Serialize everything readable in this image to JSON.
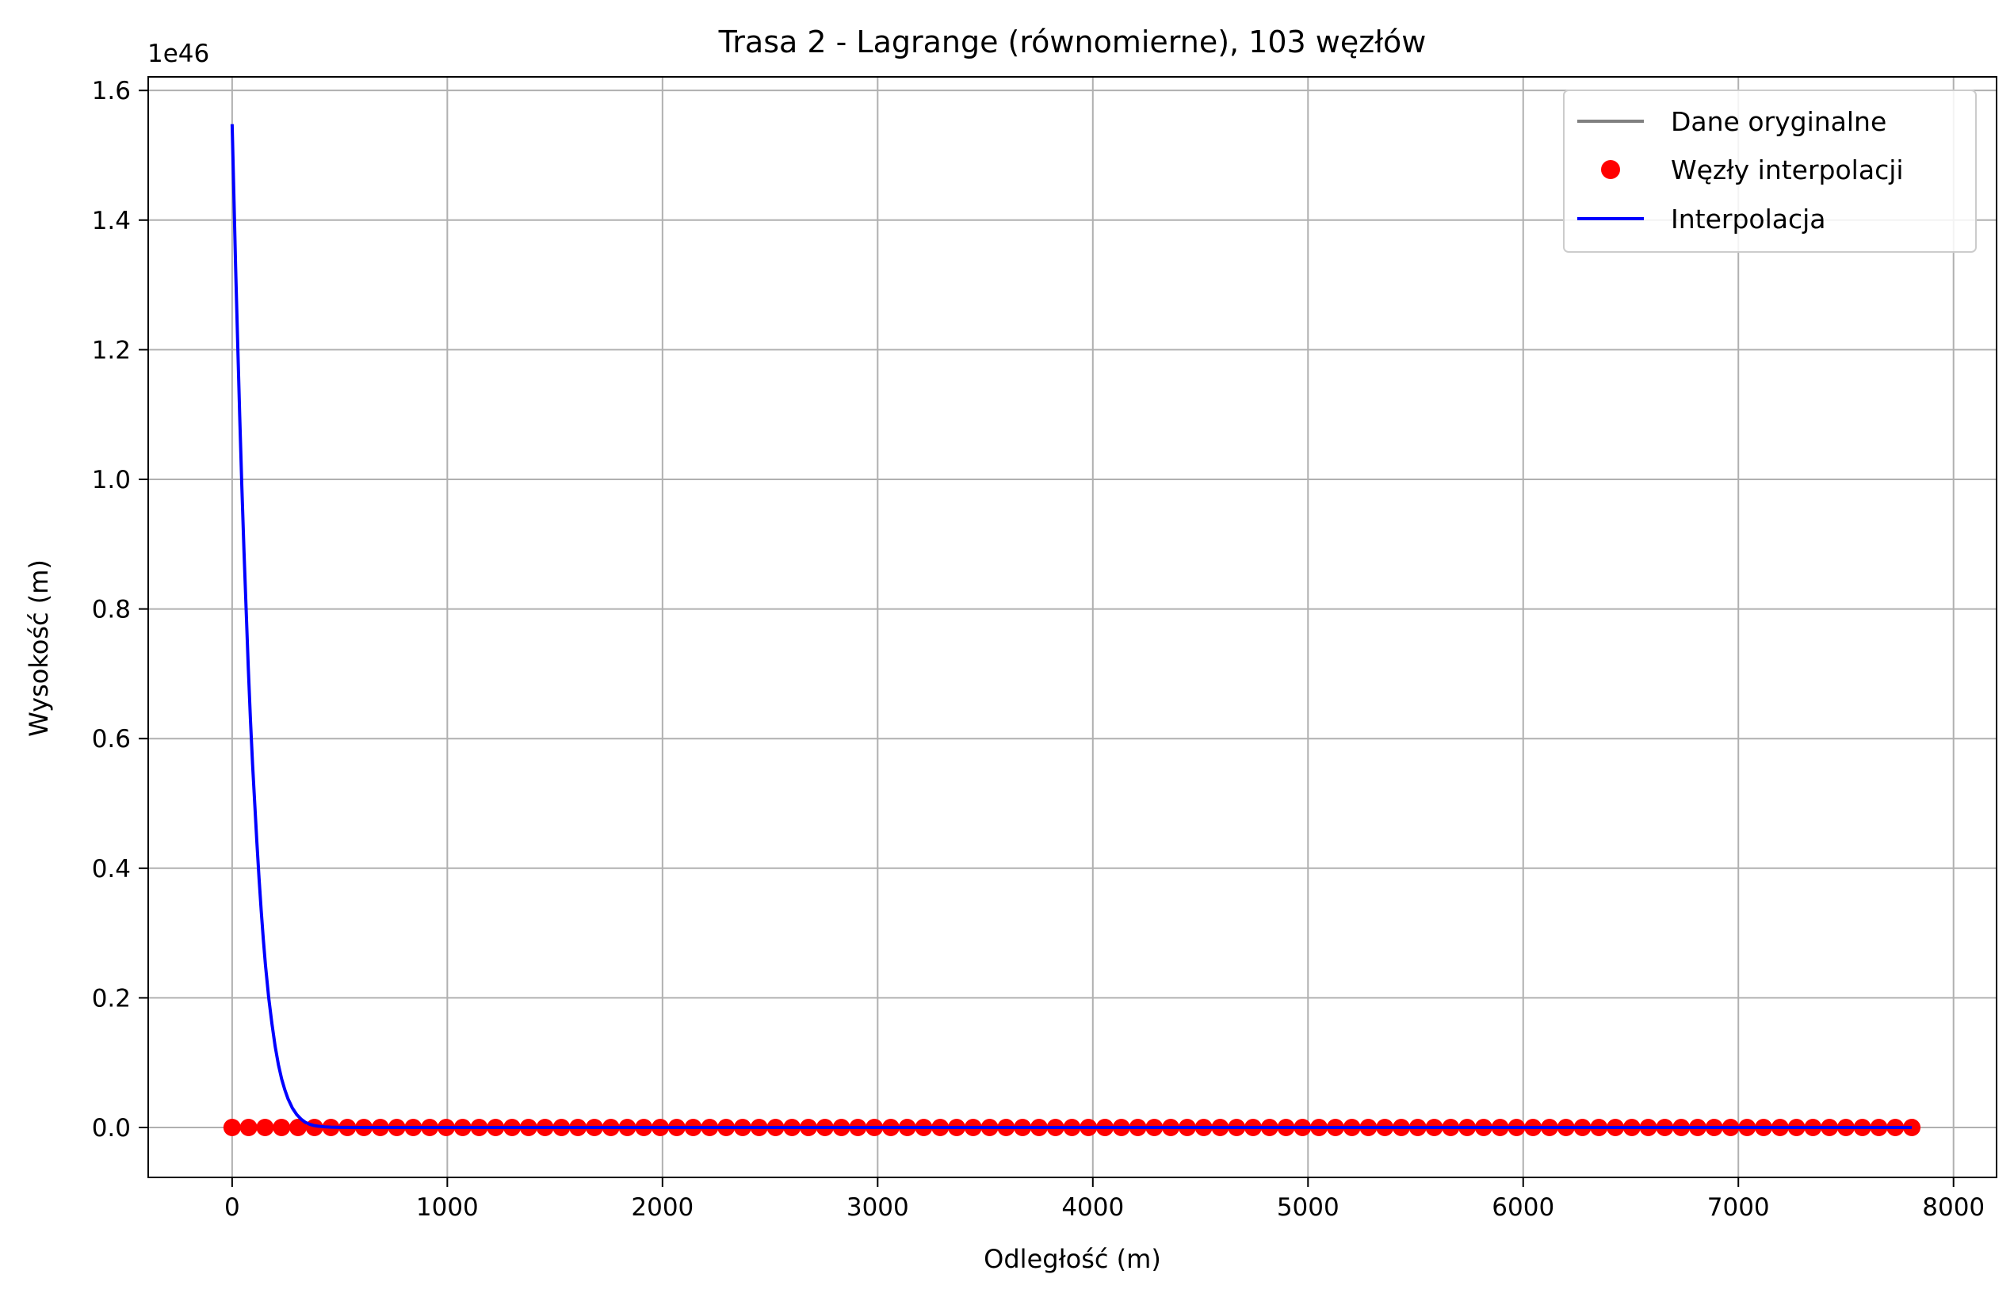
{
  "chart_data": {
    "type": "line",
    "title": "Trasa 2 - Lagrange (równomierne), 103 węzłów",
    "xlabel": "Odległość (m)",
    "ylabel": "Wysokość (m)",
    "y_offset_label": "1e46",
    "y_multiplier": "1e46",
    "xlim": [
      -390,
      8200
    ],
    "ylim": [
      -0.077,
      1.621
    ],
    "xticks": [
      0,
      1000,
      2000,
      3000,
      4000,
      5000,
      6000,
      7000,
      8000
    ],
    "xtick_labels": [
      "0",
      "1000",
      "2000",
      "3000",
      "4000",
      "5000",
      "6000",
      "7000",
      "8000"
    ],
    "yticks": [
      0.0,
      0.2,
      0.4,
      0.6,
      0.8,
      1.0,
      1.2,
      1.4,
      1.6
    ],
    "ytick_labels": [
      "0.0",
      "0.2",
      "0.4",
      "0.6",
      "0.8",
      "1.0",
      "1.2",
      "1.4",
      "1.6"
    ],
    "grid": true,
    "legend_position": "top-right",
    "series": [
      {
        "name": "Dane oryginalne",
        "kind": "line",
        "color": "#808080",
        "x": [
          0,
          7806
        ],
        "y": [
          0,
          0
        ]
      },
      {
        "name": "Węzły interpolacji",
        "kind": "markers",
        "color": "#ff0000",
        "x_start": 0,
        "x_end": 7806,
        "count": 103,
        "y": 0
      },
      {
        "name": "Interpolacja",
        "kind": "line",
        "color": "#0000ff",
        "x": [
          0,
          8,
          16,
          25,
          35,
          45,
          55,
          65,
          75,
          85,
          95,
          105,
          115,
          125,
          135,
          145,
          155,
          170,
          185,
          200,
          215,
          230,
          245,
          260,
          280,
          300,
          320,
          340,
          360,
          380,
          400,
          430,
          460,
          500,
          600,
          800,
          1000,
          2000,
          3000,
          4000,
          5000,
          6000,
          7000,
          7806
        ],
        "y": [
          1.548,
          1.44,
          1.33,
          1.22,
          1.1,
          0.99,
          0.89,
          0.8,
          0.71,
          0.63,
          0.56,
          0.5,
          0.44,
          0.385,
          0.335,
          0.29,
          0.25,
          0.2,
          0.16,
          0.125,
          0.097,
          0.075,
          0.058,
          0.044,
          0.03,
          0.02,
          0.013,
          0.008,
          0.005,
          0.003,
          0.002,
          0.001,
          0.0005,
          0.0002,
          0,
          0,
          0,
          0,
          0,
          0,
          0,
          0,
          0,
          0
        ]
      }
    ]
  }
}
